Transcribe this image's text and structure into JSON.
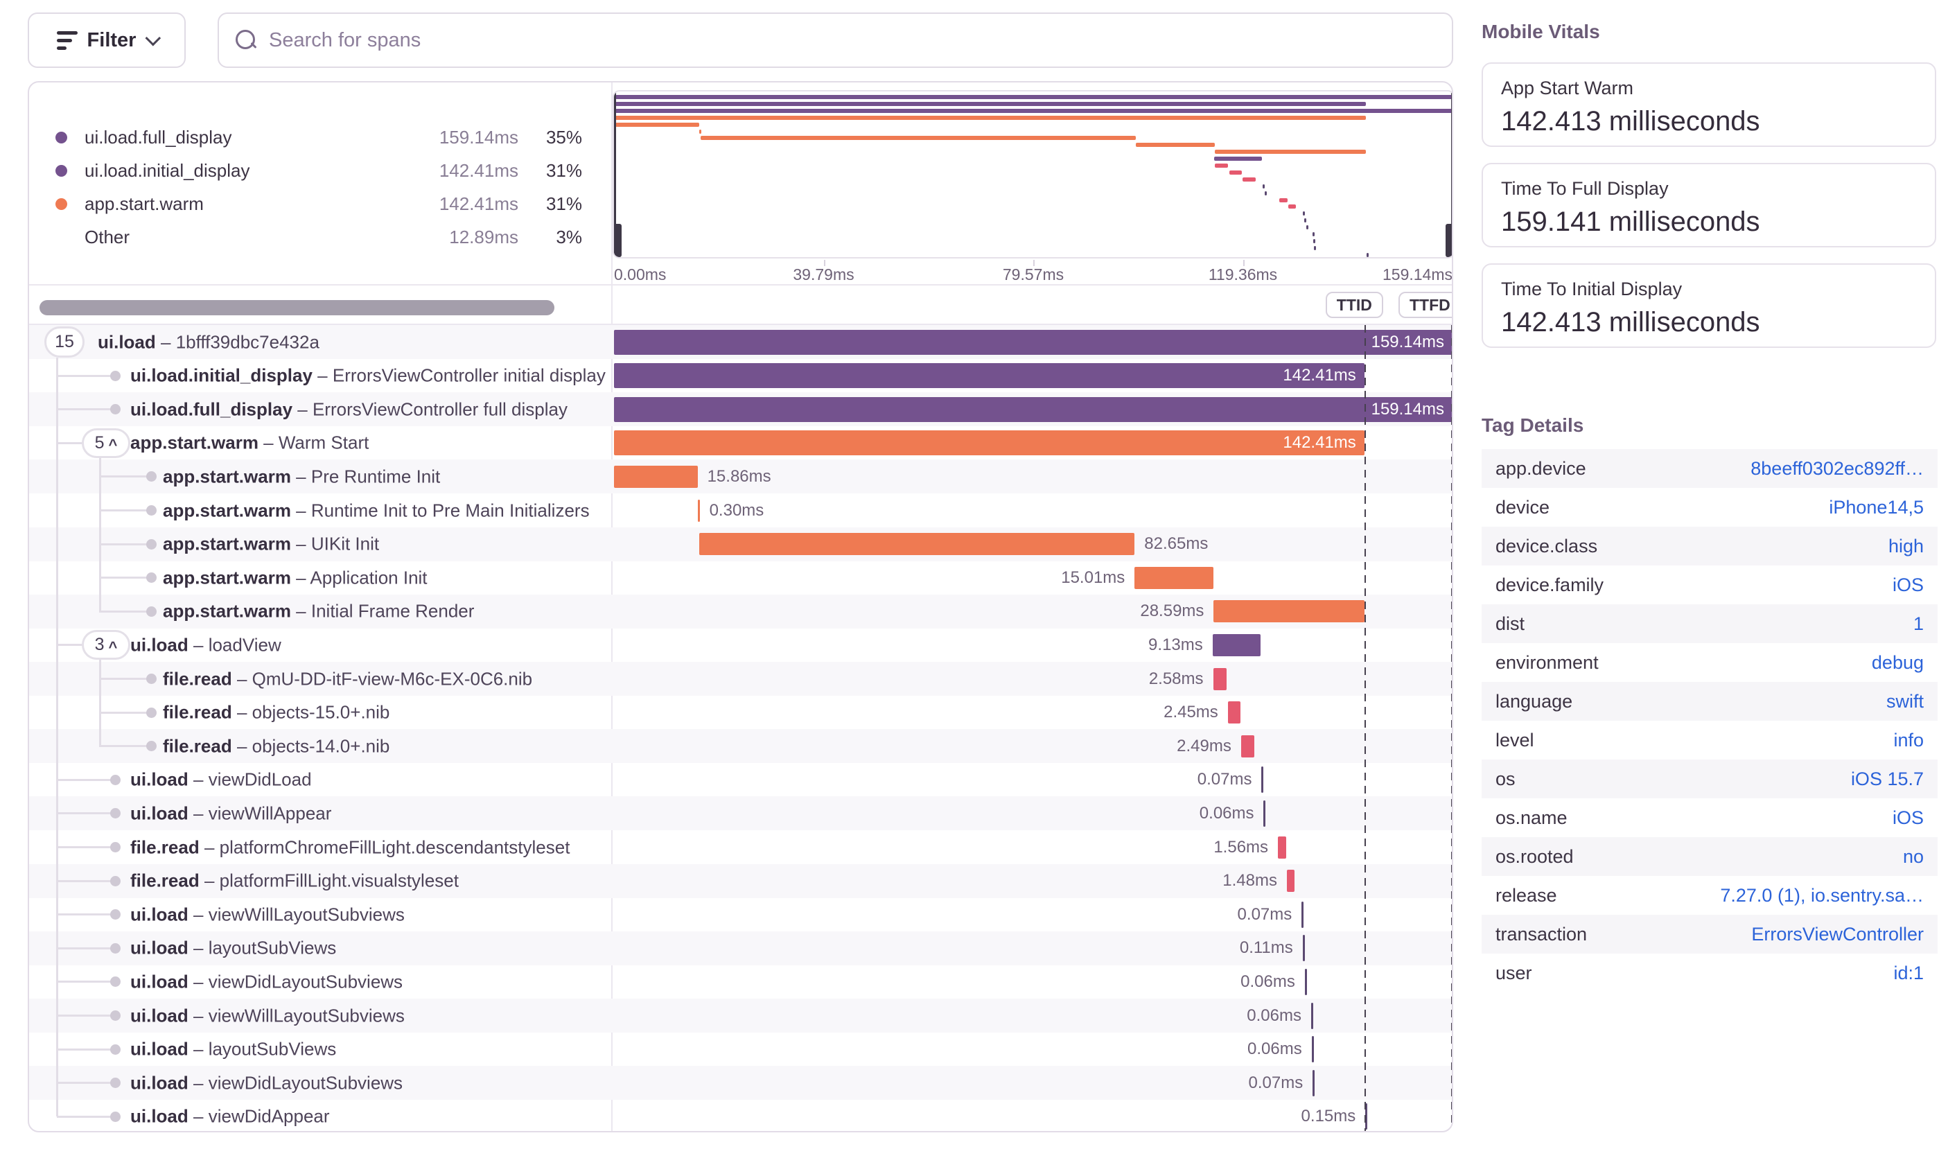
{
  "colors": {
    "purple": "#74528e",
    "orange": "#ef7a52",
    "pink": "#e5596e",
    "tick": "#5b4971",
    "link_blue": "#2c63d9"
  },
  "toolbar": {
    "filter_label": "Filter"
  },
  "search": {
    "placeholder": "Search for spans"
  },
  "legend": {
    "items": [
      {
        "name": "ui.load.full_display",
        "duration": "159.14ms",
        "pct": "35%",
        "color": "purple"
      },
      {
        "name": "ui.load.initial_display",
        "duration": "142.41ms",
        "pct": "31%",
        "color": "purple"
      },
      {
        "name": "app.start.warm",
        "duration": "142.41ms",
        "pct": "31%",
        "color": "orange"
      },
      {
        "name": "Other",
        "duration": "12.89ms",
        "pct": "3%",
        "color": "none"
      }
    ]
  },
  "timeline": {
    "total_ms": 159.14,
    "ttid_ms": 142.41,
    "ttfd_ms": 159.14,
    "axis_labels": [
      "0.00ms",
      "39.79ms",
      "79.57ms",
      "119.36ms",
      "159.14ms"
    ]
  },
  "markers": {
    "ttid": "TTID",
    "ttfd": "TTFD"
  },
  "spans": [
    {
      "op": "ui.load",
      "desc": "1bfff39dbc7e432a",
      "badge": "15",
      "arrow": false,
      "depth": 0,
      "start": 0,
      "dur": 159.14,
      "label": "159.14ms",
      "pos": "inside",
      "color": "purple"
    },
    {
      "op": "ui.load.initial_display",
      "desc": "ErrorsViewController initial display",
      "depth": 1,
      "start": 0,
      "dur": 142.41,
      "label": "142.41ms",
      "pos": "inside",
      "color": "purple"
    },
    {
      "op": "ui.load.full_display",
      "desc": "ErrorsViewController full display",
      "depth": 1,
      "start": 0,
      "dur": 159.14,
      "label": "159.14ms",
      "pos": "inside",
      "color": "purple"
    },
    {
      "op": "app.start.warm",
      "desc": "Warm Start",
      "badge": "5",
      "arrow": true,
      "depth": 1,
      "start": 0,
      "dur": 142.41,
      "label": "142.41ms",
      "pos": "inside",
      "color": "orange"
    },
    {
      "op": "app.start.warm",
      "desc": "Pre Runtime Init",
      "depth": 2,
      "start": 0,
      "dur": 15.86,
      "label": "15.86ms",
      "pos": "right",
      "color": "orange"
    },
    {
      "op": "app.start.warm",
      "desc": "Runtime Init to Pre Main Initializers",
      "depth": 2,
      "start": 15.86,
      "dur": 0.3,
      "label": "0.30ms",
      "pos": "right",
      "color": "orange"
    },
    {
      "op": "app.start.warm",
      "desc": "UIKit Init",
      "depth": 2,
      "start": 16.16,
      "dur": 82.65,
      "label": "82.65ms",
      "pos": "right",
      "color": "orange"
    },
    {
      "op": "app.start.warm",
      "desc": "Application Init",
      "depth": 2,
      "start": 98.81,
      "dur": 15.01,
      "label": "15.01ms",
      "pos": "left",
      "color": "orange"
    },
    {
      "op": "app.start.warm",
      "desc": "Initial Frame Render",
      "depth": 2,
      "start": 113.82,
      "dur": 28.59,
      "label": "28.59ms",
      "pos": "left",
      "color": "orange"
    },
    {
      "op": "ui.load",
      "desc": "loadView",
      "badge": "3",
      "arrow": true,
      "depth": 1,
      "start": 113.6,
      "dur": 9.13,
      "label": "9.13ms",
      "pos": "left",
      "color": "purple"
    },
    {
      "op": "file.read",
      "desc": "QmU-DD-itF-view-M6c-EX-0C6.nib",
      "depth": 2,
      "start": 113.7,
      "dur": 2.58,
      "label": "2.58ms",
      "pos": "left",
      "color": "pink"
    },
    {
      "op": "file.read",
      "desc": "objects-15.0+.nib",
      "depth": 2,
      "start": 116.5,
      "dur": 2.45,
      "label": "2.45ms",
      "pos": "left",
      "color": "pink"
    },
    {
      "op": "file.read",
      "desc": "objects-14.0+.nib",
      "depth": 2,
      "start": 119.0,
      "dur": 2.49,
      "label": "2.49ms",
      "pos": "left",
      "color": "pink"
    },
    {
      "op": "ui.load",
      "desc": "viewDidLoad",
      "depth": 1,
      "start": 122.9,
      "dur": 0.07,
      "label": "0.07ms",
      "pos": "left",
      "color": "tick"
    },
    {
      "op": "ui.load",
      "desc": "viewWillAppear",
      "depth": 1,
      "start": 123.3,
      "dur": 0.06,
      "label": "0.06ms",
      "pos": "left",
      "color": "tick"
    },
    {
      "op": "file.read",
      "desc": "platformChromeFillLight.descendantstyleset",
      "depth": 1,
      "start": 126.0,
      "dur": 1.56,
      "label": "1.56ms",
      "pos": "left",
      "color": "pink"
    },
    {
      "op": "file.read",
      "desc": "platformFillLight.visualstyleset",
      "depth": 1,
      "start": 127.7,
      "dur": 1.48,
      "label": "1.48ms",
      "pos": "left",
      "color": "pink"
    },
    {
      "op": "ui.load",
      "desc": "viewWillLayoutSubviews",
      "depth": 1,
      "start": 130.5,
      "dur": 0.07,
      "label": "0.07ms",
      "pos": "left",
      "color": "tick"
    },
    {
      "op": "ui.load",
      "desc": "layoutSubViews",
      "depth": 1,
      "start": 130.7,
      "dur": 0.11,
      "label": "0.11ms",
      "pos": "left",
      "color": "tick"
    },
    {
      "op": "ui.load",
      "desc": "viewDidLayoutSubviews",
      "depth": 1,
      "start": 131.1,
      "dur": 0.06,
      "label": "0.06ms",
      "pos": "left",
      "color": "tick"
    },
    {
      "op": "ui.load",
      "desc": "viewWillLayoutSubviews",
      "depth": 1,
      "start": 132.3,
      "dur": 0.06,
      "label": "0.06ms",
      "pos": "left",
      "color": "tick"
    },
    {
      "op": "ui.load",
      "desc": "layoutSubViews",
      "depth": 1,
      "start": 132.4,
      "dur": 0.06,
      "label": "0.06ms",
      "pos": "left",
      "color": "tick"
    },
    {
      "op": "ui.load",
      "desc": "viewDidLayoutSubviews",
      "depth": 1,
      "start": 132.6,
      "dur": 0.07,
      "label": "0.07ms",
      "pos": "left",
      "color": "tick"
    },
    {
      "op": "ui.load",
      "desc": "viewDidAppear",
      "depth": 1,
      "start": 142.6,
      "dur": 0.15,
      "label": "0.15ms",
      "pos": "left",
      "color": "tick"
    }
  ],
  "vitals": {
    "title": "Mobile Vitals",
    "cards": [
      {
        "label": "App Start Warm",
        "value": "142.413 milliseconds"
      },
      {
        "label": "Time To Full Display",
        "value": "159.141 milliseconds"
      },
      {
        "label": "Time To Initial Display",
        "value": "142.413 milliseconds"
      }
    ]
  },
  "tags": {
    "title": "Tag Details",
    "rows": [
      {
        "key": "app.device",
        "value": "8beeff0302ec892ff…"
      },
      {
        "key": "device",
        "value": "iPhone14,5"
      },
      {
        "key": "device.class",
        "value": "high"
      },
      {
        "key": "device.family",
        "value": "iOS"
      },
      {
        "key": "dist",
        "value": "1"
      },
      {
        "key": "environment",
        "value": "debug"
      },
      {
        "key": "language",
        "value": "swift"
      },
      {
        "key": "level",
        "value": "info"
      },
      {
        "key": "os",
        "value": "iOS 15.7"
      },
      {
        "key": "os.name",
        "value": "iOS"
      },
      {
        "key": "os.rooted",
        "value": "no"
      },
      {
        "key": "release",
        "value": "7.27.0 (1), io.sentry.sa…"
      },
      {
        "key": "transaction",
        "value": "ErrorsViewController"
      },
      {
        "key": "user",
        "value": "id:1"
      }
    ]
  }
}
